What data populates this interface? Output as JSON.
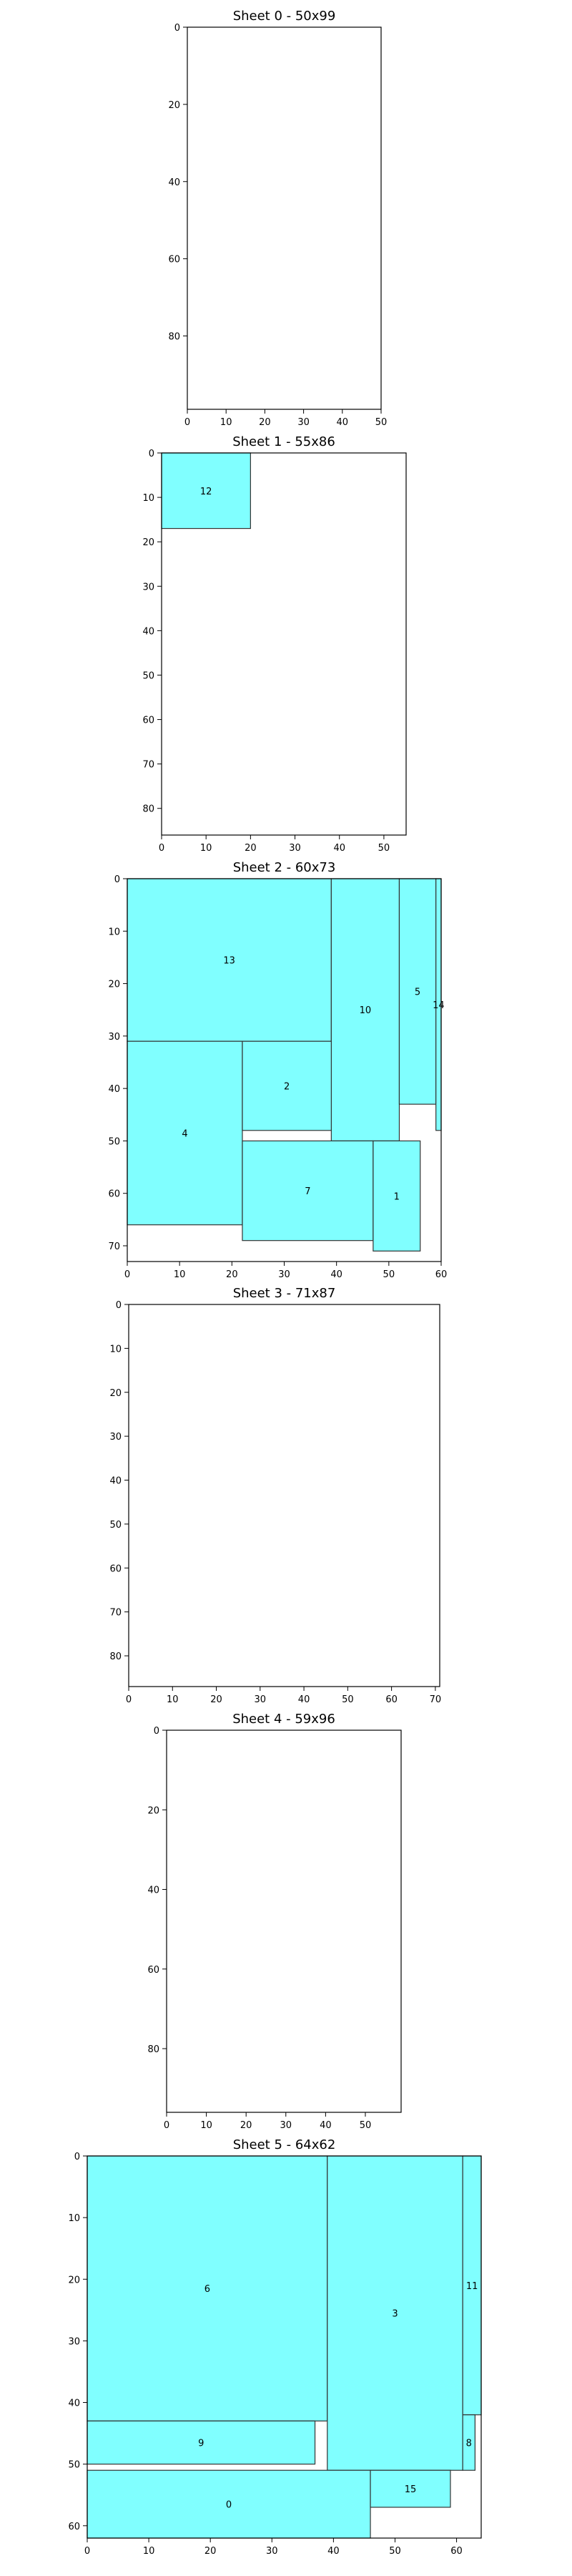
{
  "chart_data": [
    {
      "type": "packing",
      "title": "Sheet 0 - 50x99",
      "xlim": [
        0,
        50
      ],
      "ylim": [
        0,
        99
      ],
      "y_inverted": true,
      "x_ticks": [
        0,
        10,
        20,
        30,
        40,
        50
      ],
      "y_ticks": [
        0,
        20,
        40,
        60,
        80
      ],
      "rects": []
    },
    {
      "type": "packing",
      "title": "Sheet 1 - 55x86",
      "xlim": [
        0,
        55
      ],
      "ylim": [
        0,
        86
      ],
      "y_inverted": true,
      "x_ticks": [
        0,
        10,
        20,
        30,
        40,
        50
      ],
      "y_ticks": [
        0,
        10,
        20,
        30,
        40,
        50,
        60,
        70,
        80
      ],
      "rects": [
        {
          "id": "12",
          "x": 0,
          "y": 0,
          "w": 20,
          "h": 17
        }
      ]
    },
    {
      "type": "packing",
      "title": "Sheet 2 - 60x73",
      "xlim": [
        0,
        60
      ],
      "ylim": [
        0,
        73
      ],
      "y_inverted": true,
      "x_ticks": [
        0,
        10,
        20,
        30,
        40,
        50,
        60
      ],
      "y_ticks": [
        0,
        10,
        20,
        30,
        40,
        50,
        60,
        70
      ],
      "rects": [
        {
          "id": "13",
          "x": 0,
          "y": 0,
          "w": 39,
          "h": 31
        },
        {
          "id": "10",
          "x": 39,
          "y": 0,
          "w": 13,
          "h": 50
        },
        {
          "id": "5",
          "x": 52,
          "y": 0,
          "w": 7,
          "h": 43
        },
        {
          "id": "14",
          "x": 59,
          "y": 0,
          "w": 1,
          "h": 48
        },
        {
          "id": "4",
          "x": 0,
          "y": 31,
          "w": 22,
          "h": 35
        },
        {
          "id": "2",
          "x": 22,
          "y": 31,
          "w": 17,
          "h": 17
        },
        {
          "id": "7",
          "x": 22,
          "y": 50,
          "w": 25,
          "h": 19
        },
        {
          "id": "1",
          "x": 47,
          "y": 50,
          "w": 9,
          "h": 21
        }
      ]
    },
    {
      "type": "packing",
      "title": "Sheet 3 - 71x87",
      "xlim": [
        0,
        71
      ],
      "ylim": [
        0,
        87
      ],
      "y_inverted": true,
      "x_ticks": [
        0,
        10,
        20,
        30,
        40,
        50,
        60,
        70
      ],
      "y_ticks": [
        0,
        10,
        20,
        30,
        40,
        50,
        60,
        70,
        80
      ],
      "rects": []
    },
    {
      "type": "packing",
      "title": "Sheet 4 - 59x96",
      "xlim": [
        0,
        59
      ],
      "ylim": [
        0,
        96
      ],
      "y_inverted": true,
      "x_ticks": [
        0,
        10,
        20,
        30,
        40,
        50
      ],
      "y_ticks": [
        0,
        20,
        40,
        60,
        80
      ],
      "rects": []
    },
    {
      "type": "packing",
      "title": "Sheet 5 - 64x62",
      "xlim": [
        0,
        64
      ],
      "ylim": [
        0,
        62
      ],
      "y_inverted": true,
      "x_ticks": [
        0,
        10,
        20,
        30,
        40,
        50,
        60
      ],
      "y_ticks": [
        0,
        10,
        20,
        30,
        40,
        50,
        60
      ],
      "rects": [
        {
          "id": "6",
          "x": 0,
          "y": 0,
          "w": 39,
          "h": 43
        },
        {
          "id": "3",
          "x": 39,
          "y": 0,
          "w": 22,
          "h": 51
        },
        {
          "id": "11",
          "x": 61,
          "y": 0,
          "w": 3,
          "h": 42
        },
        {
          "id": "9",
          "x": 0,
          "y": 43,
          "w": 37,
          "h": 7
        },
        {
          "id": "8",
          "x": 61,
          "y": 42,
          "w": 2,
          "h": 9
        },
        {
          "id": "0",
          "x": 0,
          "y": 51,
          "w": 46,
          "h": 11
        },
        {
          "id": "15",
          "x": 46,
          "y": 51,
          "w": 13,
          "h": 6
        }
      ]
    }
  ],
  "colors": {
    "fill": "#80ffff",
    "stroke": "#333333",
    "axis": "#000000"
  }
}
